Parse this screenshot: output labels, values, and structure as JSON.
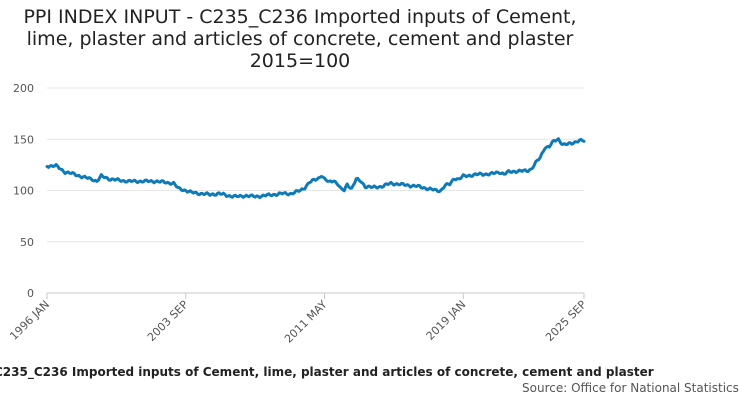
{
  "chart_data": {
    "type": "line",
    "title_lines": [
      "PPI INDEX INPUT - C235_C236 Imported inputs of Cement,",
      "lime, plaster and articles of concrete, cement and plaster",
      "2015=100"
    ],
    "xlabel": "",
    "ylabel": "",
    "ylim": [
      0,
      200
    ],
    "yticks": [
      "0",
      "50",
      "100",
      "150",
      "200"
    ],
    "xlim": [
      "1996-01",
      "2025-09"
    ],
    "xticks": [
      "1996 JAN",
      "2003 SEP",
      "2011 MAY",
      "2019 JAN",
      "2025 SEP"
    ],
    "grid": true,
    "line_color": "#0f7ab8",
    "series": [
      {
        "name": "C235_C236 Imported inputs of Cement, lime, plaster and articles of concrete, cement and plaster",
        "points": [
          [
            "1996-01",
            124
          ],
          [
            "1996-07",
            124
          ],
          [
            "1997-01",
            118
          ],
          [
            "1997-07",
            116
          ],
          [
            "1998-01",
            113
          ],
          [
            "1998-07",
            111
          ],
          [
            "1998-10",
            109
          ],
          [
            "1999-01",
            114
          ],
          [
            "1999-07",
            111
          ],
          [
            "2000-01",
            110
          ],
          [
            "2000-07",
            109
          ],
          [
            "2001-01",
            109
          ],
          [
            "2001-07",
            109
          ],
          [
            "2002-01",
            109
          ],
          [
            "2002-07",
            108
          ],
          [
            "2003-01",
            107
          ],
          [
            "2003-04",
            102
          ],
          [
            "2003-09",
            100
          ],
          [
            "2004-01",
            98
          ],
          [
            "2004-07",
            97
          ],
          [
            "2005-01",
            96
          ],
          [
            "2005-07",
            97
          ],
          [
            "2006-01",
            95
          ],
          [
            "2006-07",
            94
          ],
          [
            "2007-01",
            95
          ],
          [
            "2007-07",
            94
          ],
          [
            "2008-01",
            95
          ],
          [
            "2008-07",
            96
          ],
          [
            "2009-01",
            97
          ],
          [
            "2009-07",
            97
          ],
          [
            "2010-01",
            100
          ],
          [
            "2010-04",
            103
          ],
          [
            "2010-07",
            108
          ],
          [
            "2010-10",
            110
          ],
          [
            "2011-01",
            112
          ],
          [
            "2011-03",
            115
          ],
          [
            "2011-05",
            111
          ],
          [
            "2011-08",
            108
          ],
          [
            "2011-11",
            110
          ],
          [
            "2012-02",
            106
          ],
          [
            "2012-04",
            101
          ],
          [
            "2012-06",
            100
          ],
          [
            "2012-08",
            106
          ],
          [
            "2012-11",
            102
          ],
          [
            "2013-02",
            111
          ],
          [
            "2013-05",
            109
          ],
          [
            "2013-08",
            104
          ],
          [
            "2014-01",
            103
          ],
          [
            "2014-07",
            104
          ],
          [
            "2015-01",
            107
          ],
          [
            "2015-07",
            106
          ],
          [
            "2016-01",
            105
          ],
          [
            "2016-07",
            104
          ],
          [
            "2017-01",
            102
          ],
          [
            "2017-07",
            100
          ],
          [
            "2017-10",
            100
          ],
          [
            "2018-01",
            105
          ],
          [
            "2018-04",
            106
          ],
          [
            "2018-07",
            112
          ],
          [
            "2018-10",
            111
          ],
          [
            "2019-01",
            114
          ],
          [
            "2019-07",
            115
          ],
          [
            "2020-01",
            116
          ],
          [
            "2020-07",
            116
          ],
          [
            "2021-01",
            118
          ],
          [
            "2021-04",
            116
          ],
          [
            "2021-07",
            118
          ],
          [
            "2022-01",
            119
          ],
          [
            "2022-07",
            119
          ],
          [
            "2022-10",
            121
          ],
          [
            "2023-01",
            127
          ],
          [
            "2023-04",
            132
          ],
          [
            "2023-07",
            142
          ],
          [
            "2023-10",
            143
          ],
          [
            "2024-01",
            148
          ],
          [
            "2024-04",
            150
          ],
          [
            "2024-07",
            145
          ],
          [
            "2024-10",
            145
          ],
          [
            "2025-01",
            146
          ],
          [
            "2025-04",
            148
          ],
          [
            "2025-06",
            149
          ],
          [
            "2025-09",
            148
          ]
        ]
      }
    ],
    "legend_text": "C235_C236 Imported inputs of Cement, lime, plaster and articles of concrete, cement and plaster",
    "source_label": "Source: Office for National Statistics"
  }
}
